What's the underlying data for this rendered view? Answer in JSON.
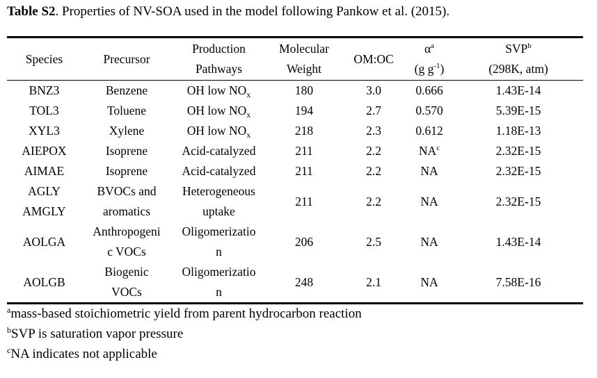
{
  "caption": {
    "label": "Table S2",
    "text": ". Properties of NV-SOA used in the model following Pankow et al. (2015)."
  },
  "table": {
    "headers": {
      "species": "Species",
      "precursor": "Precursor",
      "pathways_l1": "Production",
      "pathways_l2": "Pathways",
      "mw_l1": "Molecular",
      "mw_l2": "Weight",
      "omoc": "OM:OC",
      "alpha_sym": "α",
      "alpha_mark": "a",
      "alpha_unit_pre": "(g g",
      "alpha_unit_exp": "-1",
      "alpha_unit_post": ")",
      "svp": "SVP",
      "svp_mark": "b",
      "svp_unit": "(298K, atm)"
    },
    "rows": [
      {
        "species": "BNZ3",
        "precursor": "Benzene",
        "pathway": "OH low NO",
        "pathway_sub": "x",
        "mw": "180",
        "omoc": "3.0",
        "alpha": "0.666",
        "svp": "1.43E-14"
      },
      {
        "species": "TOL3",
        "precursor": "Toluene",
        "pathway": "OH low NO",
        "pathway_sub": "x",
        "mw": "194",
        "omoc": "2.7",
        "alpha": "0.570",
        "svp": "5.39E-15"
      },
      {
        "species": "XYL3",
        "precursor": "Xylene",
        "pathway": "OH low NO",
        "pathway_sub": "x",
        "mw": "218",
        "omoc": "2.3",
        "alpha": "0.612",
        "svp": "1.18E-13"
      },
      {
        "species": "AIEPOX",
        "precursor": "Isoprene",
        "pathway": "Acid-catalyzed",
        "mw": "211",
        "omoc": "2.2",
        "alpha": "NA",
        "alpha_mark": "c",
        "svp": "2.32E-15"
      },
      {
        "species": "AIMAE",
        "precursor": "Isoprene",
        "pathway": "Acid-catalyzed",
        "mw": "211",
        "omoc": "2.2",
        "alpha": "NA",
        "svp": "2.32E-15"
      },
      {
        "species_l1": "AGLY",
        "species_l2": "AMGLY",
        "precursor_l1": "BVOCs and",
        "precursor_l2": "aromatics",
        "pathway_l1": "Heterogeneous",
        "pathway_l2": "uptake",
        "mw": "211",
        "omoc": "2.2",
        "alpha": "NA",
        "svp": "2.32E-15"
      },
      {
        "species": "AOLGA",
        "precursor_l1": "Anthropogeni",
        "precursor_l2": "c VOCs",
        "pathway_l1": "Oligomerizatio",
        "pathway_l2": "n",
        "mw": "206",
        "omoc": "2.5",
        "alpha": "NA",
        "svp": "1.43E-14"
      },
      {
        "species": "AOLGB",
        "precursor_l1": "Biogenic",
        "precursor_l2": "VOCs",
        "pathway_l1": "Oligomerizatio",
        "pathway_l2": "n",
        "mw": "248",
        "omoc": "2.1",
        "alpha": "NA",
        "svp": "7.58E-16"
      }
    ]
  },
  "footnotes": [
    {
      "mark": "a",
      "text": "mass-based stoichiometric yield from parent hydrocarbon reaction"
    },
    {
      "mark": "b",
      "text": "SVP is saturation vapor pressure"
    },
    {
      "mark": "c",
      "text": "NA indicates not applicable"
    }
  ]
}
